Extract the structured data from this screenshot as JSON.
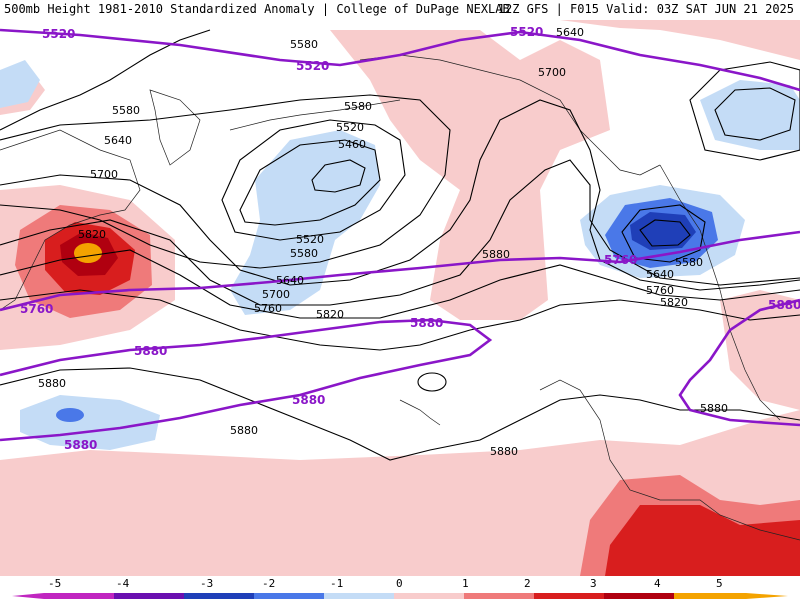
{
  "header": {
    "title": "500mb Height 1981-2010 Standardized Anomaly | College of DuPage NEXLAB",
    "run_info": "12Z GFS | F015 Valid: 03Z SAT JUN 21 2025"
  },
  "colors": {
    "anom_neg5": "#c026c0",
    "anom_neg4": "#6a0fb0",
    "anom_neg3": "#1f3fb8",
    "anom_neg2": "#4a78e8",
    "anom_neg1": "#c4dcf6",
    "anom_pos1": "#f8cccc",
    "anom_pos2": "#ef7a7a",
    "anom_pos3": "#d81e1e",
    "anom_pos4": "#b00010",
    "anom_pos5": "#f4a300",
    "contour": "#000000",
    "highlight_contour": "#8a16c8"
  },
  "colorbar": {
    "labels": [
      "-5",
      "-4",
      "-3",
      "-2",
      "-1",
      "0",
      "1",
      "2",
      "3",
      "4",
      "5"
    ]
  },
  "contour_labels": {
    "l5520": "5520",
    "l5580": "5580",
    "l5640": "5640",
    "l5700": "5700",
    "l5760": "5760",
    "l5820": "5820",
    "l5880": "5880",
    "l5460": "5460"
  }
}
